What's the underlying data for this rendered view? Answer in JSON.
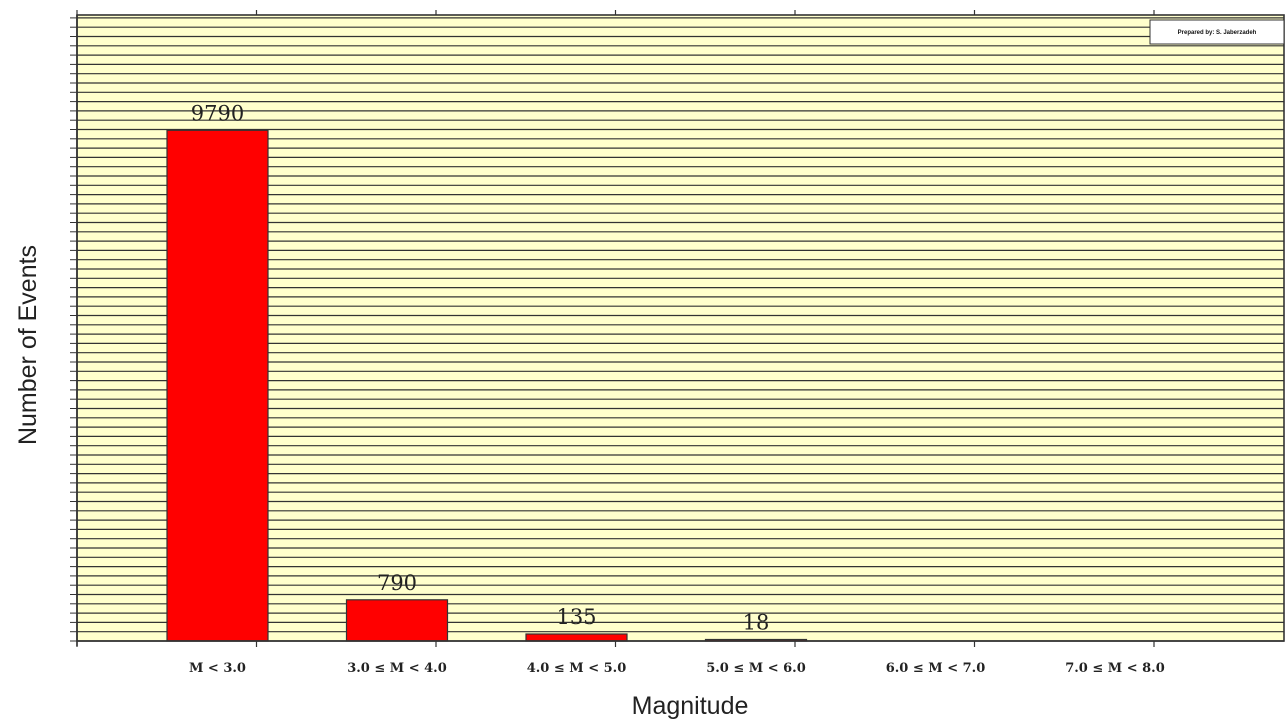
{
  "chart_data": {
    "type": "bar",
    "categories": [
      "M < 3.0",
      "3.0 ≤ M < 4.0",
      "4.0 ≤ M < 5.0",
      "5.0 ≤ M < 6.0",
      "6.0 ≤ M < 7.0",
      "7.0 ≤ M < 8.0"
    ],
    "values": [
      9790,
      790,
      135,
      18,
      null,
      null
    ],
    "data_labels": [
      "9790",
      "790",
      "135",
      "18",
      "",
      ""
    ],
    "xlabel": "Magnitude",
    "ylabel": "Number of Events",
    "ylim": [
      0,
      12000
    ],
    "grid": true,
    "colors": {
      "bar": "#ff0000",
      "plot_background": "#ffffcc",
      "grid_line": "#333333"
    }
  },
  "annotation": {
    "credit": "Prepared by: S. Jaberzadeh"
  }
}
